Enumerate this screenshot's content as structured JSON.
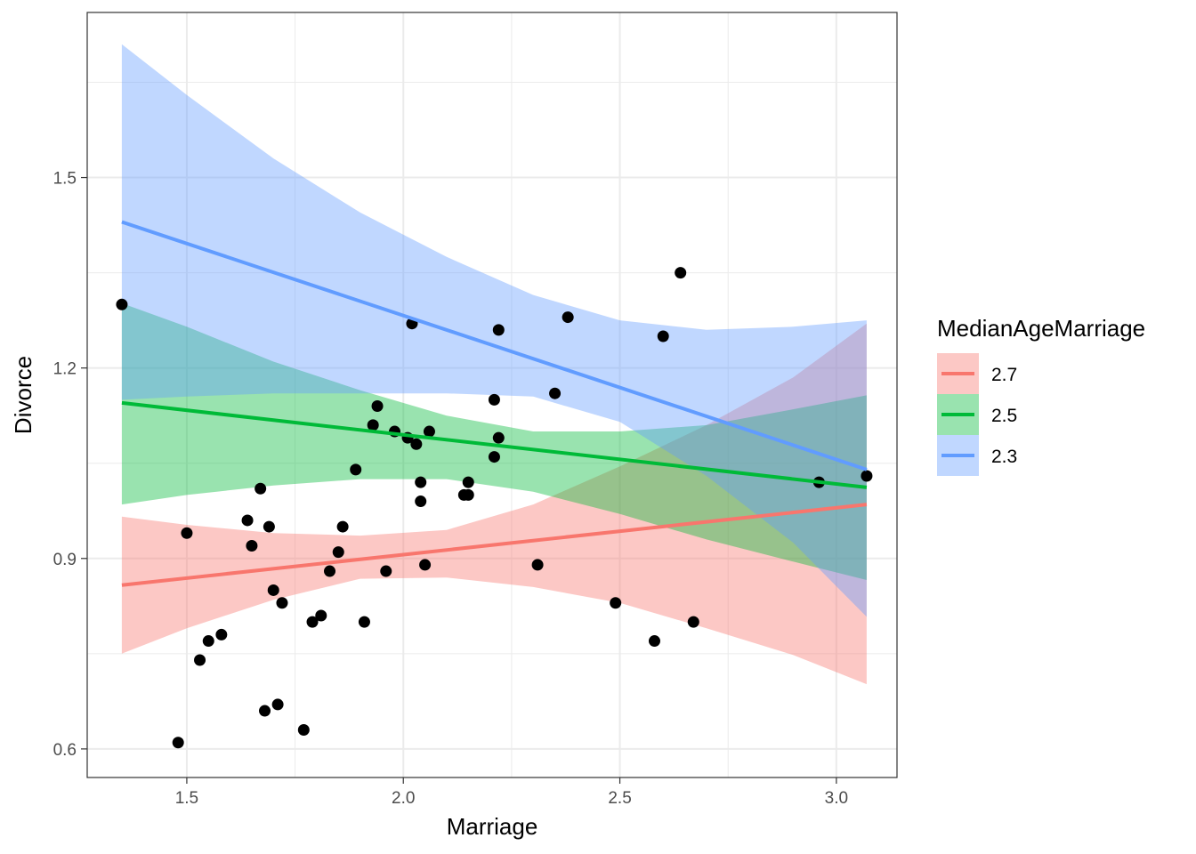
{
  "chart_data": {
    "type": "scatter",
    "xlabel": "Marriage",
    "ylabel": "Divorce",
    "xlim": [
      1.27,
      3.14
    ],
    "ylim": [
      0.555,
      1.76
    ],
    "x_ticks": [
      {
        "value": 1.5,
        "label": "1.5"
      },
      {
        "value": 2.0,
        "label": "2.0"
      },
      {
        "value": 2.5,
        "label": "2.5"
      },
      {
        "value": 3.0,
        "label": "3.0"
      }
    ],
    "y_ticks": [
      {
        "value": 0.6,
        "label": "0.6"
      },
      {
        "value": 0.9,
        "label": "0.9"
      },
      {
        "value": 1.2,
        "label": "1.2"
      },
      {
        "value": 1.5,
        "label": "1.5"
      }
    ],
    "grid": true,
    "legend": {
      "title": "MedianAgeMarriage",
      "position": "right",
      "entries": [
        {
          "label": "2.7",
          "color": "#F8766D"
        },
        {
          "label": "2.5",
          "color": "#00BA38"
        },
        {
          "label": "2.3",
          "color": "#619CFF"
        }
      ]
    },
    "fits": [
      {
        "label": "2.7",
        "color": "#F8766D",
        "line": [
          [
            1.35,
            0.858
          ],
          [
            3.07,
            0.985
          ]
        ],
        "band": [
          [
            1.35,
            0.966,
            0.75
          ],
          [
            1.5,
            0.953,
            0.79
          ],
          [
            1.7,
            0.94,
            0.835
          ],
          [
            1.9,
            0.936,
            0.868
          ],
          [
            2.1,
            0.945,
            0.87
          ],
          [
            2.3,
            0.985,
            0.855
          ],
          [
            2.5,
            1.045,
            0.83
          ],
          [
            2.7,
            1.11,
            0.79
          ],
          [
            2.9,
            1.185,
            0.748
          ],
          [
            3.07,
            1.27,
            0.702
          ]
        ]
      },
      {
        "label": "2.5",
        "color": "#00BA38",
        "line": [
          [
            1.35,
            1.145
          ],
          [
            3.07,
            1.012
          ]
        ],
        "band": [
          [
            1.35,
            1.302,
            0.985
          ],
          [
            1.5,
            1.265,
            1.0
          ],
          [
            1.7,
            1.21,
            1.015
          ],
          [
            1.9,
            1.165,
            1.025
          ],
          [
            2.1,
            1.125,
            1.025
          ],
          [
            2.3,
            1.1,
            1.005
          ],
          [
            2.5,
            1.1,
            0.97
          ],
          [
            2.7,
            1.11,
            0.93
          ],
          [
            2.9,
            1.135,
            0.895
          ],
          [
            3.07,
            1.157,
            0.866
          ]
        ]
      },
      {
        "label": "2.3",
        "color": "#619CFF",
        "line": [
          [
            1.35,
            1.43
          ],
          [
            3.07,
            1.04
          ]
        ],
        "band": [
          [
            1.35,
            1.71,
            1.15
          ],
          [
            1.5,
            1.63,
            1.155
          ],
          [
            1.7,
            1.53,
            1.16
          ],
          [
            1.9,
            1.445,
            1.16
          ],
          [
            2.1,
            1.375,
            1.16
          ],
          [
            2.3,
            1.315,
            1.155
          ],
          [
            2.5,
            1.275,
            1.115
          ],
          [
            2.7,
            1.26,
            1.03
          ],
          [
            2.9,
            1.265,
            0.925
          ],
          [
            3.07,
            1.275,
            0.808
          ]
        ]
      }
    ],
    "points": [
      [
        1.35,
        1.3
      ],
      [
        1.48,
        0.61
      ],
      [
        1.5,
        0.94
      ],
      [
        1.53,
        0.74
      ],
      [
        1.55,
        0.77
      ],
      [
        1.58,
        0.78
      ],
      [
        1.64,
        0.96
      ],
      [
        1.65,
        0.92
      ],
      [
        1.67,
        1.01
      ],
      [
        1.68,
        0.66
      ],
      [
        1.69,
        0.95
      ],
      [
        1.7,
        0.85
      ],
      [
        1.71,
        0.67
      ],
      [
        1.72,
        0.83
      ],
      [
        1.77,
        0.63
      ],
      [
        1.79,
        0.8
      ],
      [
        1.81,
        0.81
      ],
      [
        1.83,
        0.88
      ],
      [
        1.85,
        0.91
      ],
      [
        1.86,
        0.95
      ],
      [
        1.89,
        1.04
      ],
      [
        1.91,
        0.8
      ],
      [
        1.93,
        1.11
      ],
      [
        1.94,
        1.14
      ],
      [
        1.96,
        0.88
      ],
      [
        1.98,
        1.1
      ],
      [
        2.01,
        1.09
      ],
      [
        2.02,
        1.27
      ],
      [
        2.03,
        1.08
      ],
      [
        2.04,
        1.02
      ],
      [
        2.04,
        0.99
      ],
      [
        2.05,
        0.89
      ],
      [
        2.06,
        1.1
      ],
      [
        2.14,
        1.0
      ],
      [
        2.15,
        1.02
      ],
      [
        2.15,
        1.0
      ],
      [
        2.21,
        1.15
      ],
      [
        2.21,
        1.06
      ],
      [
        2.22,
        1.26
      ],
      [
        2.22,
        1.09
      ],
      [
        2.31,
        0.89
      ],
      [
        2.35,
        1.16
      ],
      [
        2.38,
        1.28
      ],
      [
        2.49,
        0.83
      ],
      [
        2.58,
        0.77
      ],
      [
        2.6,
        1.25
      ],
      [
        2.64,
        1.35
      ],
      [
        2.67,
        0.8
      ],
      [
        2.96,
        1.02
      ],
      [
        3.07,
        1.03
      ]
    ]
  }
}
